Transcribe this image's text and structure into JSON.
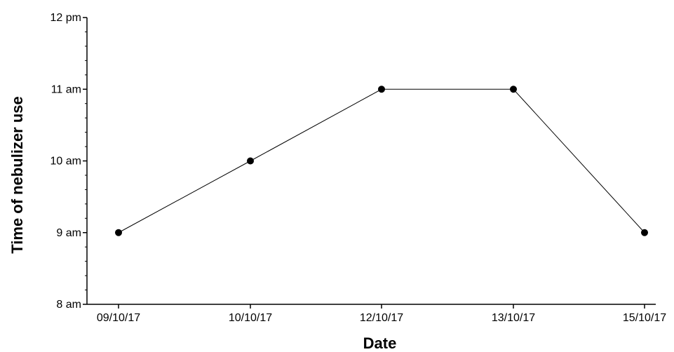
{
  "chart_data": {
    "type": "line",
    "title": "",
    "xlabel": "Date",
    "ylabel": "Time of nebulizer use",
    "categories": [
      "09/10/17",
      "10/10/17",
      "12/10/17",
      "13/10/17",
      "15/10/17"
    ],
    "values": [
      9,
      10,
      11,
      11,
      9
    ],
    "y_ticks": [
      {
        "value": 8,
        "label": "8 am"
      },
      {
        "value": 9,
        "label": "9 am"
      },
      {
        "value": 10,
        "label": "10 am"
      },
      {
        "value": 11,
        "label": "11 am"
      },
      {
        "value": 12,
        "label": "12 pm"
      }
    ],
    "ylim": [
      8,
      12
    ],
    "grid": false,
    "line_color": "#000000",
    "marker_color": "#000000"
  }
}
